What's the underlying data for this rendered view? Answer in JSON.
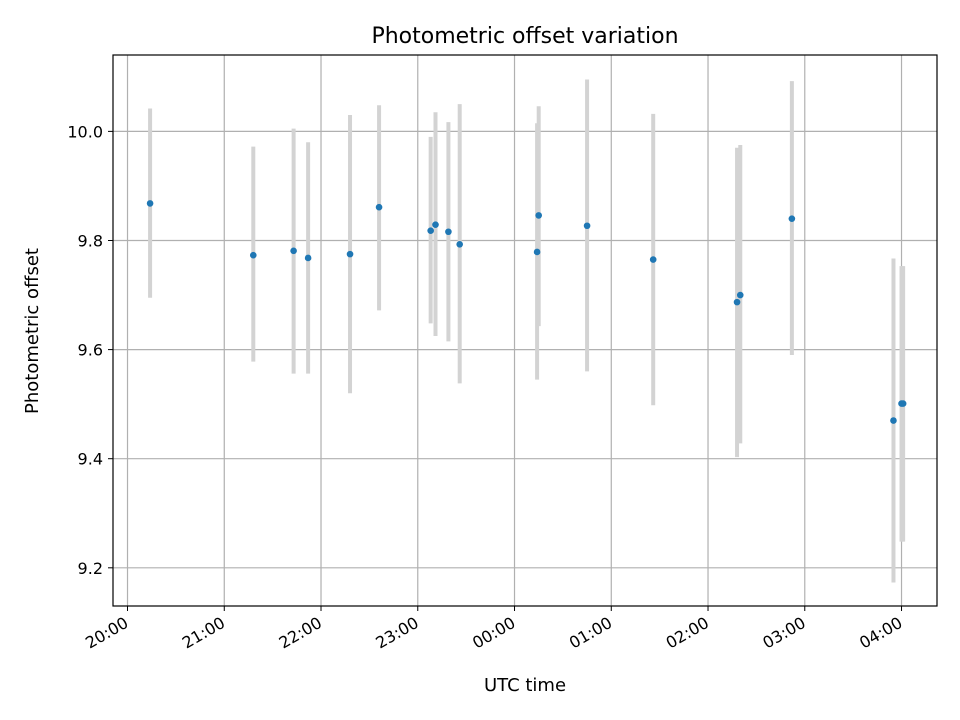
{
  "chart_data": {
    "type": "scatter",
    "title": "Photometric offset variation",
    "xlabel": "UTC time",
    "ylabel": "Photometric offset",
    "x_range": [
      "19:51",
      "04:22"
    ],
    "ylim": [
      9.13,
      10.14
    ],
    "x_ticks": [
      {
        "time": "20:00",
        "label": "20:00"
      },
      {
        "time": "21:00",
        "label": "21:00"
      },
      {
        "time": "22:00",
        "label": "22:00"
      },
      {
        "time": "23:00",
        "label": "23:00"
      },
      {
        "time": "00:00",
        "label": "00:00"
      },
      {
        "time": "01:00",
        "label": "01:00"
      },
      {
        "time": "02:00",
        "label": "02:00"
      },
      {
        "time": "03:00",
        "label": "03:00"
      },
      {
        "time": "04:00",
        "label": "04:00"
      }
    ],
    "y_ticks": [
      9.2,
      9.4,
      9.6,
      9.8,
      10.0
    ],
    "y_tick_labels": [
      "9.2",
      "9.4",
      "9.6",
      "9.8",
      "10.0"
    ],
    "grid": true,
    "marker_color": "#1f77b4",
    "errorbar_color": "#d3d3d3",
    "points": [
      {
        "time": "20:14",
        "y": 9.868,
        "low": 9.695,
        "high": 10.042
      },
      {
        "time": "21:18",
        "y": 9.773,
        "low": 9.578,
        "high": 9.972
      },
      {
        "time": "21:43",
        "y": 9.781,
        "low": 9.556,
        "high": 10.005
      },
      {
        "time": "21:52",
        "y": 9.768,
        "low": 9.556,
        "high": 9.98
      },
      {
        "time": "22:18",
        "y": 9.775,
        "low": 9.52,
        "high": 10.03
      },
      {
        "time": "22:36",
        "y": 9.861,
        "low": 9.672,
        "high": 10.048
      },
      {
        "time": "23:08",
        "y": 9.818,
        "low": 9.648,
        "high": 9.99
      },
      {
        "time": "23:11",
        "y": 9.829,
        "low": 9.625,
        "high": 10.035
      },
      {
        "time": "23:19",
        "y": 9.816,
        "low": 9.615,
        "high": 10.017
      },
      {
        "time": "23:26",
        "y": 9.793,
        "low": 9.538,
        "high": 10.05
      },
      {
        "time": "00:14",
        "y": 9.779,
        "low": 9.545,
        "high": 10.015
      },
      {
        "time": "00:15",
        "y": 9.846,
        "low": 9.643,
        "high": 10.046
      },
      {
        "time": "00:45",
        "y": 9.827,
        "low": 9.56,
        "high": 10.095
      },
      {
        "time": "01:26",
        "y": 9.765,
        "low": 9.498,
        "high": 10.032
      },
      {
        "time": "02:18",
        "y": 9.687,
        "low": 9.403,
        "high": 9.97
      },
      {
        "time": "02:20",
        "y": 9.7,
        "low": 9.428,
        "high": 9.975
      },
      {
        "time": "02:52",
        "y": 9.84,
        "low": 9.59,
        "high": 10.092
      },
      {
        "time": "03:55",
        "y": 9.47,
        "low": 9.173,
        "high": 9.767
      },
      {
        "time": "04:00",
        "y": 9.501,
        "low": 9.248,
        "high": 9.753
      },
      {
        "time": "04:01",
        "y": 9.501,
        "low": 9.248,
        "high": 9.753
      }
    ]
  }
}
